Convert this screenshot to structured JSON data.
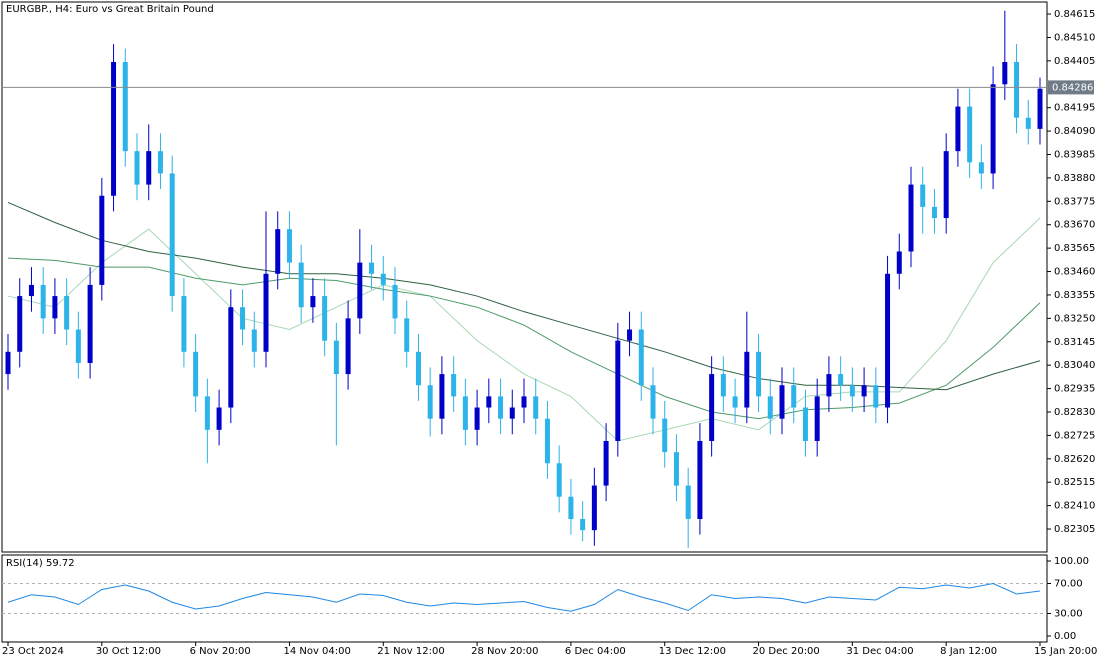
{
  "chart_data": {
    "type": "candlestick",
    "title": "EURGBP., H4:  Euro vs Great Britain Pound",
    "up_color": "#0000c8",
    "down_color": "#2bb3ea",
    "ohlc": [
      [
        0.83,
        0.8318,
        0.8293,
        0.831
      ],
      [
        0.831,
        0.8343,
        0.8303,
        0.8335
      ],
      [
        0.8335,
        0.8348,
        0.8328,
        0.834
      ],
      [
        0.834,
        0.8348,
        0.8318,
        0.8325
      ],
      [
        0.8325,
        0.8343,
        0.8318,
        0.8335
      ],
      [
        0.8335,
        0.8343,
        0.8313,
        0.832
      ],
      [
        0.832,
        0.8328,
        0.8298,
        0.8305
      ],
      [
        0.8305,
        0.8348,
        0.8298,
        0.834
      ],
      [
        0.834,
        0.8388,
        0.8333,
        0.838
      ],
      [
        0.838,
        0.8448,
        0.8373,
        0.844
      ],
      [
        0.844,
        0.8446,
        0.8393,
        0.84
      ],
      [
        0.84,
        0.8408,
        0.8378,
        0.8385
      ],
      [
        0.8385,
        0.8412,
        0.8378,
        0.84
      ],
      [
        0.84,
        0.8408,
        0.8383,
        0.839
      ],
      [
        0.839,
        0.8398,
        0.8328,
        0.8335
      ],
      [
        0.8335,
        0.8343,
        0.8303,
        0.831
      ],
      [
        0.831,
        0.8318,
        0.8283,
        0.829
      ],
      [
        0.829,
        0.8298,
        0.826,
        0.8275
      ],
      [
        0.8275,
        0.8293,
        0.8268,
        0.8285
      ],
      [
        0.8285,
        0.8338,
        0.8278,
        0.833
      ],
      [
        0.833,
        0.8338,
        0.8313,
        0.832
      ],
      [
        0.832,
        0.8328,
        0.8303,
        0.831
      ],
      [
        0.831,
        0.8373,
        0.8303,
        0.8345
      ],
      [
        0.8345,
        0.8373,
        0.8338,
        0.8365
      ],
      [
        0.8365,
        0.8373,
        0.8343,
        0.835
      ],
      [
        0.835,
        0.8358,
        0.8323,
        0.833
      ],
      [
        0.833,
        0.8343,
        0.8323,
        0.8335
      ],
      [
        0.8335,
        0.8343,
        0.8308,
        0.8315
      ],
      [
        0.8315,
        0.8323,
        0.8268,
        0.83
      ],
      [
        0.83,
        0.8333,
        0.8293,
        0.8325
      ],
      [
        0.8325,
        0.8365,
        0.8318,
        0.835
      ],
      [
        0.835,
        0.8358,
        0.8338,
        0.8345
      ],
      [
        0.8345,
        0.8353,
        0.8333,
        0.834
      ],
      [
        0.834,
        0.8348,
        0.8318,
        0.8325
      ],
      [
        0.8325,
        0.8333,
        0.8303,
        0.831
      ],
      [
        0.831,
        0.8318,
        0.8288,
        0.8295
      ],
      [
        0.8295,
        0.8303,
        0.8272,
        0.828
      ],
      [
        0.828,
        0.8308,
        0.8273,
        0.83
      ],
      [
        0.83,
        0.8308,
        0.8283,
        0.829
      ],
      [
        0.829,
        0.8298,
        0.8268,
        0.8275
      ],
      [
        0.8275,
        0.8293,
        0.8268,
        0.8285
      ],
      [
        0.8285,
        0.8298,
        0.8278,
        0.829
      ],
      [
        0.829,
        0.8298,
        0.8273,
        0.828
      ],
      [
        0.828,
        0.8293,
        0.8273,
        0.8285
      ],
      [
        0.8285,
        0.8298,
        0.8278,
        0.829
      ],
      [
        0.829,
        0.8298,
        0.8273,
        0.828
      ],
      [
        0.828,
        0.8288,
        0.8253,
        0.826
      ],
      [
        0.826,
        0.8268,
        0.8238,
        0.8245
      ],
      [
        0.8245,
        0.8253,
        0.8228,
        0.8235
      ],
      [
        0.8235,
        0.8243,
        0.8225,
        0.823
      ],
      [
        0.823,
        0.8258,
        0.8223,
        0.825
      ],
      [
        0.825,
        0.8278,
        0.8243,
        0.827
      ],
      [
        0.827,
        0.8323,
        0.8263,
        0.8315
      ],
      [
        0.8315,
        0.8328,
        0.8308,
        0.832
      ],
      [
        0.832,
        0.8328,
        0.8288,
        0.8295
      ],
      [
        0.8295,
        0.8303,
        0.8273,
        0.828
      ],
      [
        0.828,
        0.8288,
        0.8258,
        0.8265
      ],
      [
        0.8265,
        0.8273,
        0.8243,
        0.825
      ],
      [
        0.825,
        0.8258,
        0.8222,
        0.8235
      ],
      [
        0.8235,
        0.8278,
        0.8228,
        0.827
      ],
      [
        0.827,
        0.8308,
        0.8263,
        0.83
      ],
      [
        0.83,
        0.8308,
        0.8283,
        0.829
      ],
      [
        0.829,
        0.8298,
        0.8278,
        0.8285
      ],
      [
        0.8285,
        0.8328,
        0.8278,
        0.831
      ],
      [
        0.831,
        0.8318,
        0.8283,
        0.829
      ],
      [
        0.829,
        0.8298,
        0.8273,
        0.828
      ],
      [
        0.828,
        0.8303,
        0.8273,
        0.8295
      ],
      [
        0.8295,
        0.8303,
        0.8278,
        0.8285
      ],
      [
        0.8285,
        0.8293,
        0.8263,
        0.827
      ],
      [
        0.827,
        0.8298,
        0.8263,
        0.829
      ],
      [
        0.829,
        0.8308,
        0.8283,
        0.83
      ],
      [
        0.83,
        0.8308,
        0.8288,
        0.8295
      ],
      [
        0.8295,
        0.8303,
        0.8283,
        0.829
      ],
      [
        0.829,
        0.8303,
        0.8283,
        0.8295
      ],
      [
        0.8295,
        0.8303,
        0.8278,
        0.8285
      ],
      [
        0.8285,
        0.8353,
        0.8278,
        0.8345
      ],
      [
        0.8345,
        0.8363,
        0.8338,
        0.8355
      ],
      [
        0.8355,
        0.8393,
        0.8348,
        0.8385
      ],
      [
        0.8385,
        0.8393,
        0.8363,
        0.8375
      ],
      [
        0.8375,
        0.8383,
        0.8363,
        0.837
      ],
      [
        0.837,
        0.8408,
        0.8363,
        0.84
      ],
      [
        0.84,
        0.8428,
        0.8393,
        0.842
      ],
      [
        0.842,
        0.8428,
        0.8388,
        0.8395
      ],
      [
        0.8395,
        0.8403,
        0.8383,
        0.839
      ],
      [
        0.839,
        0.8438,
        0.8383,
        0.843
      ],
      [
        0.843,
        0.8463,
        0.8423,
        0.844
      ],
      [
        0.844,
        0.8448,
        0.8408,
        0.8415
      ],
      [
        0.8415,
        0.8423,
        0.8403,
        0.841
      ],
      [
        0.841,
        0.8433,
        0.8403,
        0.8428
      ]
    ],
    "xlim": [
      0,
      88
    ],
    "xticks": [
      {
        "value": 0,
        "label": "23 Oct 2024"
      },
      {
        "value": 8,
        "label": "30 Oct 12:00"
      },
      {
        "value": 16,
        "label": "6 Nov 20:00"
      },
      {
        "value": 24,
        "label": "14 Nov 04:00"
      },
      {
        "value": 32,
        "label": "21 Nov 12:00"
      },
      {
        "value": 40,
        "label": "28 Nov 20:00"
      },
      {
        "value": 48,
        "label": "6 Dec 04:00"
      },
      {
        "value": 56,
        "label": "13 Dec 12:00"
      },
      {
        "value": 64,
        "label": "20 Dec 20:00"
      },
      {
        "value": 72,
        "label": "31 Dec 04:00"
      },
      {
        "value": 80,
        "label": "8 Jan 12:00"
      },
      {
        "value": 88,
        "label": "15 Jan 20:00"
      }
    ],
    "ylim": [
      0.82202,
      0.84669
    ],
    "yticks": [
      0.84615,
      {
        "value": 0.8451,
        "label": "0.84510"
      },
      0.84405,
      0.84195,
      {
        "value": 0.8409,
        "label": "0.84090"
      },
      0.83985,
      {
        "value": 0.8388,
        "label": "0.83880"
      },
      0.83775,
      {
        "value": 0.8367,
        "label": "0.83670"
      },
      0.83565,
      {
        "value": 0.8346,
        "label": "0.83460"
      },
      0.83355,
      {
        "value": 0.8325,
        "label": "0.83250"
      },
      0.83145,
      {
        "value": 0.8304,
        "label": "0.83040"
      },
      0.82935,
      {
        "value": 0.8283,
        "label": "0.82830"
      },
      0.82725,
      {
        "value": 0.8262,
        "label": "0.82620"
      },
      0.82515,
      {
        "value": 0.8241,
        "label": "0.82410"
      },
      0.82305
    ],
    "current_price": 0.84286,
    "moving_averages": [
      {
        "color": "#a8d8b4",
        "x": [
          0,
          4,
          8,
          12,
          16,
          20,
          24,
          28,
          32,
          36,
          40,
          44,
          48,
          52,
          56,
          60,
          64,
          68,
          72,
          76,
          80,
          84,
          88
        ],
        "values": [
          0.8335,
          0.833,
          0.835,
          0.8365,
          0.8345,
          0.8325,
          0.832,
          0.833,
          0.834,
          0.8335,
          0.8315,
          0.83,
          0.829,
          0.827,
          0.8275,
          0.828,
          0.8275,
          0.829,
          0.8292,
          0.8292,
          0.8315,
          0.835,
          0.837
        ]
      },
      {
        "color": "#4e9a68",
        "x": [
          0,
          4,
          8,
          12,
          16,
          20,
          24,
          28,
          32,
          36,
          40,
          44,
          48,
          52,
          56,
          60,
          64,
          68,
          72,
          76,
          80,
          84,
          88
        ],
        "values": [
          0.8352,
          0.8351,
          0.8348,
          0.8348,
          0.8343,
          0.834,
          0.8343,
          0.8342,
          0.8338,
          0.8335,
          0.833,
          0.8322,
          0.831,
          0.83,
          0.829,
          0.8283,
          0.828,
          0.8284,
          0.8285,
          0.8287,
          0.8295,
          0.8312,
          0.8332
        ]
      },
      {
        "color": "#2f6040",
        "x": [
          0,
          4,
          8,
          12,
          16,
          20,
          24,
          28,
          32,
          36,
          40,
          44,
          48,
          52,
          56,
          60,
          64,
          68,
          72,
          76,
          80,
          84,
          88
        ],
        "values": [
          0.8377,
          0.8368,
          0.836,
          0.8355,
          0.8352,
          0.8348,
          0.8345,
          0.8345,
          0.8343,
          0.834,
          0.8335,
          0.8328,
          0.8322,
          0.8316,
          0.831,
          0.8303,
          0.8298,
          0.8295,
          0.8295,
          0.8294,
          0.8293,
          0.83,
          0.8306
        ]
      }
    ],
    "rsi": {
      "label": "RSI(14) 59.72",
      "color": "#1e88e5",
      "ylim": [
        0,
        100
      ],
      "yticks": [
        {
          "value": 100,
          "label": "100.00"
        },
        {
          "value": 70,
          "label": "70.00"
        },
        {
          "value": 30,
          "label": "30.00"
        },
        {
          "value": 0,
          "label": "0.00"
        }
      ],
      "x": [
        0,
        2,
        4,
        6,
        8,
        10,
        12,
        14,
        16,
        18,
        20,
        22,
        24,
        26,
        28,
        30,
        32,
        34,
        36,
        38,
        40,
        42,
        44,
        46,
        48,
        50,
        52,
        54,
        56,
        58,
        60,
        62,
        64,
        66,
        68,
        70,
        72,
        74,
        76,
        78,
        80,
        82,
        84,
        86,
        88
      ],
      "values": [
        45,
        55,
        52,
        42,
        62,
        68,
        60,
        45,
        36,
        40,
        50,
        58,
        55,
        52,
        45,
        56,
        54,
        45,
        40,
        44,
        42,
        44,
        46,
        38,
        33,
        42,
        62,
        52,
        44,
        34,
        55,
        50,
        52,
        50,
        44,
        52,
        50,
        48,
        65,
        63,
        68,
        64,
        70,
        56,
        60
      ]
    }
  }
}
